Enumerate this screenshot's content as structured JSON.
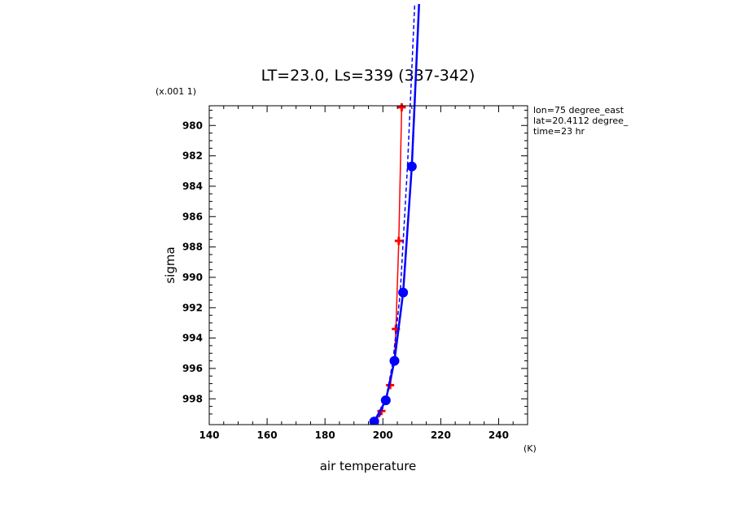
{
  "chart_data": {
    "type": "line",
    "title": "LT=23.0, Ls=339 (337-342)",
    "xlabel": "air temperature",
    "xunit": "(K)",
    "ylabel": "sigma",
    "yunit": "(x.001 1)",
    "xlim": [
      140,
      250
    ],
    "ylim": [
      978.7,
      999.7
    ],
    "y_inverted": true,
    "x_ticks": [
      "140",
      "160",
      "180",
      "200",
      "220",
      "240"
    ],
    "y_ticks": [
      "980",
      "982",
      "984",
      "986",
      "988",
      "990",
      "992",
      "994",
      "996",
      "998"
    ],
    "annotations": [
      "lon=75 degree_east",
      "lat=20.4112 degree_",
      "time=23 hr"
    ],
    "series": [
      {
        "color": "#ff0000",
        "style": "solid-thin-plus",
        "points": [
          [
            197.0,
            999.7
          ],
          [
            199.5,
            998.8
          ],
          [
            202.5,
            997.1
          ],
          [
            204.0,
            995.5
          ],
          [
            204.5,
            993.4
          ],
          [
            205.5,
            987.6
          ],
          [
            206.5,
            978.8
          ]
        ]
      },
      {
        "color": "#0000ff",
        "style": "solid-thick-circle",
        "points": [
          [
            196.0,
            999.9
          ],
          [
            197.0,
            999.5
          ],
          [
            201.0,
            998.1
          ],
          [
            204.0,
            995.5
          ],
          [
            207.0,
            991.0
          ],
          [
            210.0,
            982.7
          ],
          [
            212.5,
            972.0
          ]
        ]
      },
      {
        "color": "#0000ff",
        "style": "dashed",
        "points": [
          [
            198.0,
            999.6
          ],
          [
            201.0,
            998.1
          ],
          [
            203.5,
            995.5
          ],
          [
            206.0,
            991.0
          ],
          [
            208.5,
            982.7
          ],
          [
            211.0,
            972.0
          ]
        ]
      }
    ]
  }
}
